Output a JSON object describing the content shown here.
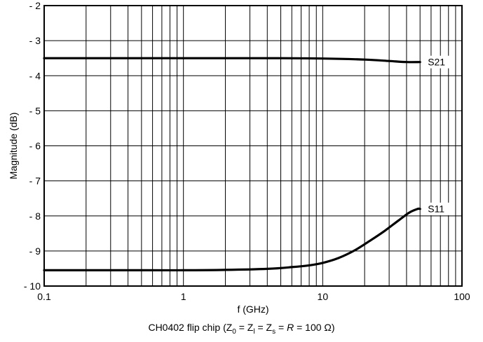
{
  "chart_data": {
    "type": "line",
    "title": "",
    "caption": {
      "prefix": "CH0402 flip chip (Z",
      "sub1": "0",
      "mid1": " = Z",
      "sub2": "l",
      "mid2": " = Z",
      "sub3": "s",
      "mid3": " = ",
      "italic": "R",
      "suffix": " = 100 Ω)"
    },
    "xlabel": "f (GHz)",
    "ylabel": "Magnitude (dB)",
    "xscale": "log",
    "xlim": [
      0.1,
      100
    ],
    "ylim": [
      -10,
      -2
    ],
    "grid": true,
    "x_ticks": [
      {
        "value": 0.1,
        "label": "0.1"
      },
      {
        "value": 1,
        "label": "1"
      },
      {
        "value": 10,
        "label": "10"
      },
      {
        "value": 100,
        "label": "100"
      }
    ],
    "y_ticks": [
      {
        "value": -2,
        "label": "- 2"
      },
      {
        "value": -3,
        "label": "- 3"
      },
      {
        "value": -4,
        "label": "- 4"
      },
      {
        "value": -5,
        "label": "- 5"
      },
      {
        "value": -6,
        "label": "- 6"
      },
      {
        "value": -7,
        "label": "- 7"
      },
      {
        "value": -8,
        "label": "- 8"
      },
      {
        "value": -9,
        "label": "- 9"
      },
      {
        "value": -10,
        "label": "- 10"
      }
    ],
    "series": [
      {
        "name": "S21",
        "x": [
          0.1,
          0.2,
          0.5,
          1,
          2,
          5,
          10,
          20,
          30,
          40,
          50
        ],
        "values": [
          -3.5,
          -3.5,
          -3.5,
          -3.5,
          -3.5,
          -3.5,
          -3.51,
          -3.54,
          -3.58,
          -3.61,
          -3.61
        ]
      },
      {
        "name": "S11",
        "x": [
          0.1,
          0.2,
          0.5,
          1,
          2,
          4,
          6,
          8,
          10,
          13,
          17,
          22,
          28,
          35,
          42,
          48,
          50
        ],
        "values": [
          -9.55,
          -9.55,
          -9.55,
          -9.55,
          -9.54,
          -9.51,
          -9.46,
          -9.41,
          -9.34,
          -9.2,
          -8.98,
          -8.7,
          -8.42,
          -8.13,
          -7.9,
          -7.8,
          -7.8
        ]
      }
    ]
  }
}
